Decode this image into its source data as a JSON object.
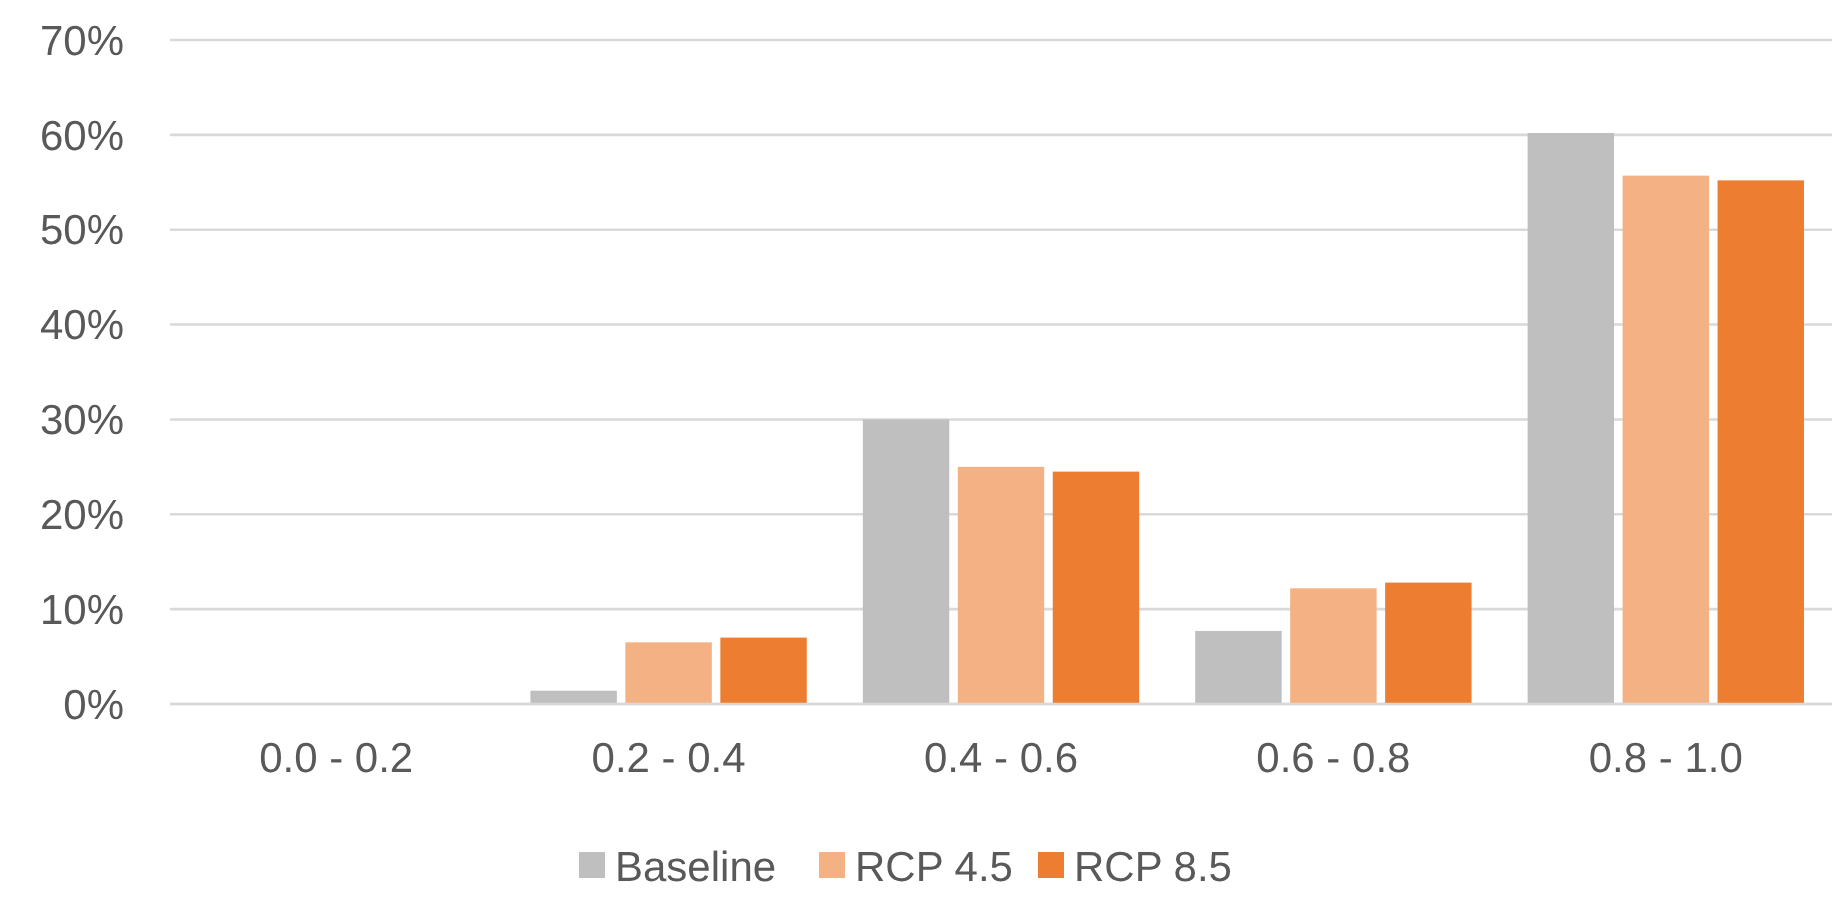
{
  "chart_data": {
    "type": "bar",
    "categories": [
      "0.0 - 0.2",
      "0.2 - 0.4",
      "0.4 - 0.6",
      "0.6 - 0.8",
      "0.8 - 1.0"
    ],
    "series": [
      {
        "name": "Baseline",
        "color": "#bfbfbf",
        "values": [
          0,
          1.4,
          30,
          7.7,
          60.2
        ]
      },
      {
        "name": "RCP 4.5",
        "color": "#f4b183",
        "values": [
          0,
          6.5,
          25,
          12.2,
          55.7
        ]
      },
      {
        "name": "RCP 8.5",
        "color": "#ed7d31",
        "values": [
          0,
          7,
          24.5,
          12.8,
          55.2
        ]
      }
    ],
    "ylim": [
      0,
      70
    ],
    "yticks": [
      {
        "value": 0,
        "label": "0%"
      },
      {
        "value": 10,
        "label": "10%"
      },
      {
        "value": 20,
        "label": "20%"
      },
      {
        "value": 30,
        "label": "30%"
      },
      {
        "value": 40,
        "label": "40%"
      },
      {
        "value": 50,
        "label": "50%"
      },
      {
        "value": 60,
        "label": "60%"
      },
      {
        "value": 70,
        "label": "70%"
      }
    ],
    "grid": "y",
    "legend": "bottom"
  }
}
